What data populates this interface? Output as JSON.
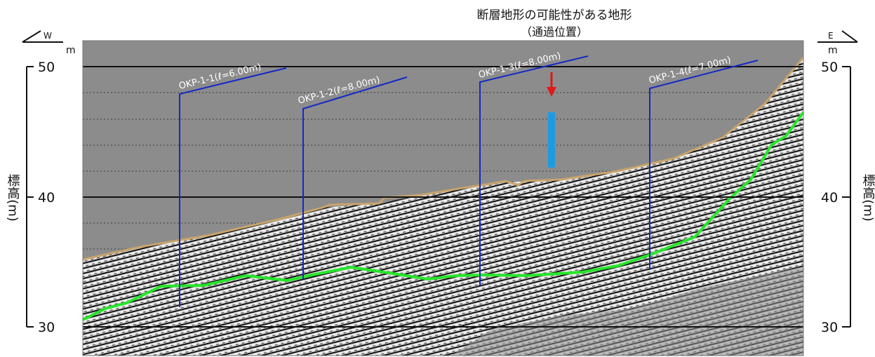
{
  "title": "断層地形の可能性がある地形",
  "subtitle": "（通過位置）",
  "direction_left": "W",
  "direction_right": "E",
  "unit_left": "m",
  "unit_right": "m",
  "axis_title_left": "標高(m)",
  "axis_title_right": "標高(m)",
  "ticks_left": [
    "50",
    "40",
    "30"
  ],
  "ticks_right": [
    "50",
    "40",
    "30"
  ],
  "colors": {
    "profile_background": "#8c8c8c",
    "ground_surface": "#c9a46c",
    "reflector_line": "#27e62a",
    "borehole": "#1428c8",
    "marker_bar": "#1e9be0",
    "arrow": "#e01818"
  },
  "boreholes": [
    {
      "label": "OKP-1-1(ℓ=6.00m)",
      "length_m": 6.0
    },
    {
      "label": "OKP-1-2(ℓ=8.00m)",
      "length_m": 8.0
    },
    {
      "label": "OKP-1-3(ℓ=8.00m)",
      "length_m": 8.0
    },
    {
      "label": "OKP-1-4(ℓ=7.00m)",
      "length_m": 7.0
    }
  ]
}
